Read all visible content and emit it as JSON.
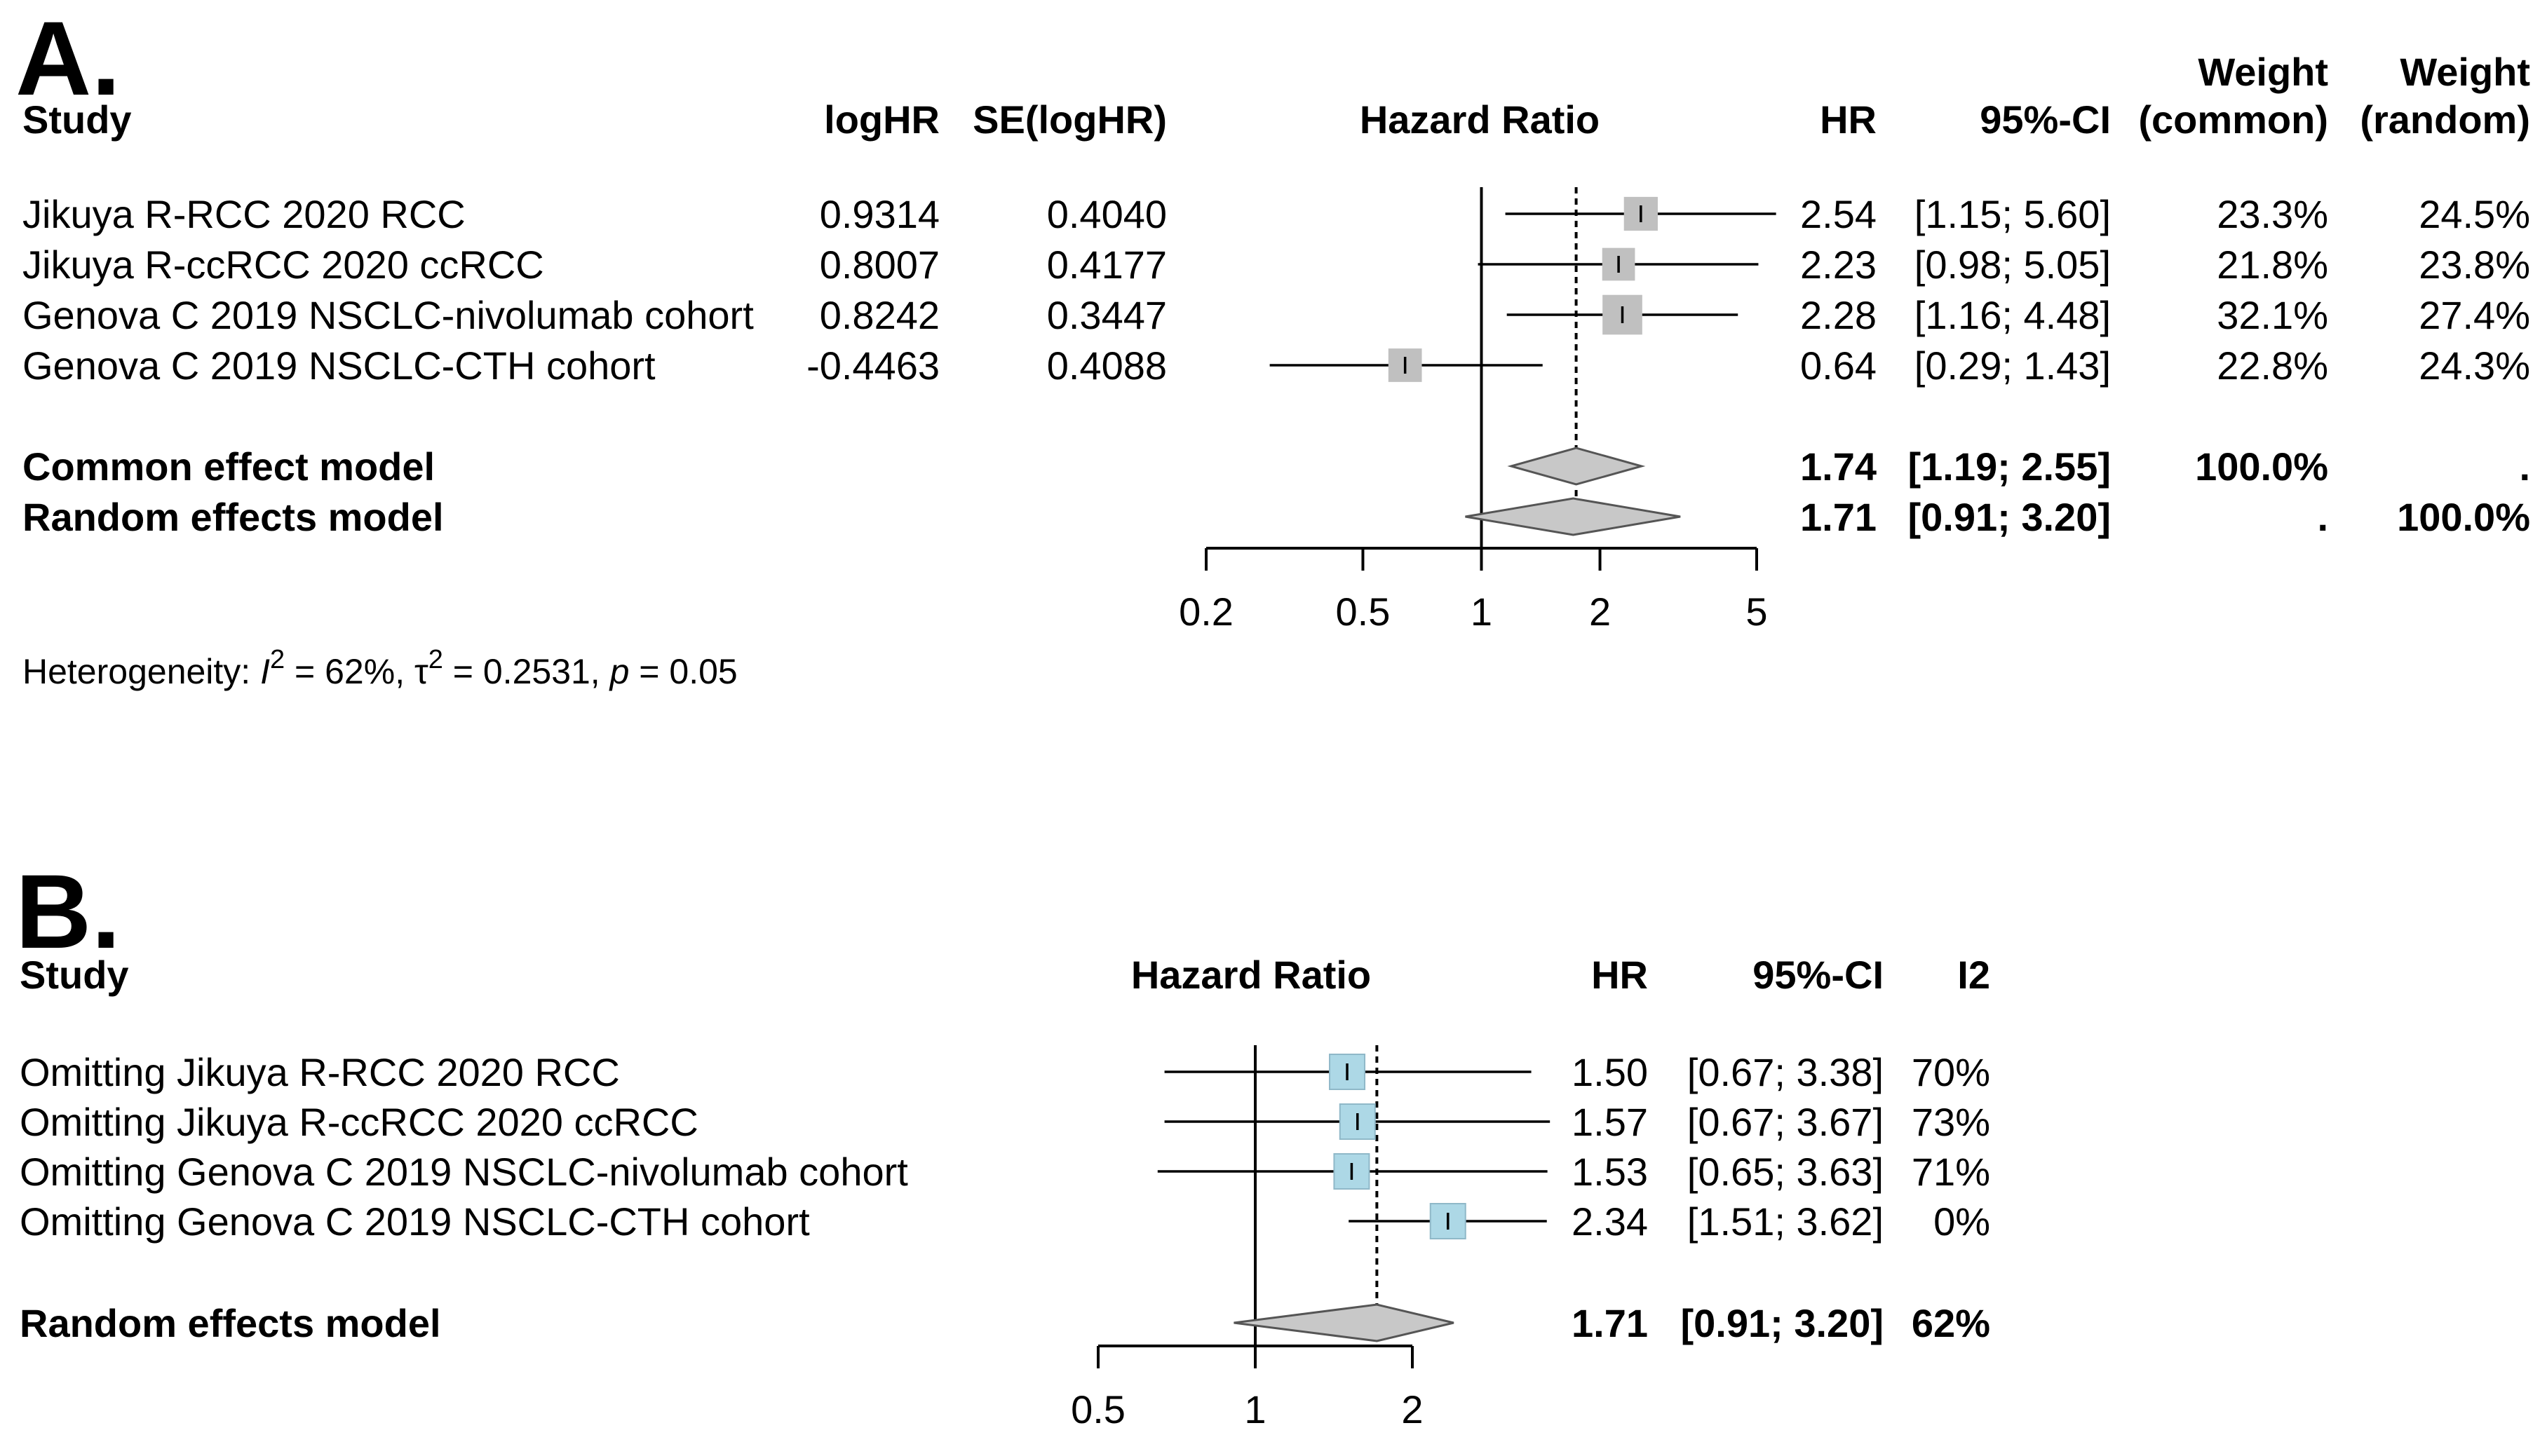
{
  "chart_data": [
    {
      "type": "forest",
      "panel_label": "A.",
      "scale": "log",
      "headers": {
        "study": "Study",
        "loghr": "logHR",
        "se": "SE(logHR)",
        "plot": "Hazard Ratio",
        "hr": "HR",
        "ci": "95%-CI",
        "weight_common_1": "Weight",
        "weight_common_2": "(common)",
        "weight_random_1": "Weight",
        "weight_random_2": "(random)"
      },
      "studies": [
        {
          "label": "Jikuya R-RCC 2020 RCC",
          "logHR": "0.9314",
          "se": "0.4040",
          "hr": 2.54,
          "lo": 1.15,
          "hi": 5.6,
          "hr_text": "2.54",
          "ci_text": "[1.15; 5.60]",
          "w_common": "23.3%",
          "w_random": "24.5%",
          "box_weight": 0.233
        },
        {
          "label": "Jikuya R-ccRCC 2020 ccRCC",
          "logHR": "0.8007",
          "se": "0.4177",
          "hr": 2.23,
          "lo": 0.98,
          "hi": 5.05,
          "hr_text": "2.23",
          "ci_text": "[0.98; 5.05]",
          "w_common": "21.8%",
          "w_random": "23.8%",
          "box_weight": 0.218
        },
        {
          "label": "Genova C 2019 NSCLC-nivolumab cohort",
          "logHR": "0.8242",
          "se": "0.3447",
          "hr": 2.28,
          "lo": 1.16,
          "hi": 4.48,
          "hr_text": "2.28",
          "ci_text": "[1.16; 4.48]",
          "w_common": "32.1%",
          "w_random": "27.4%",
          "box_weight": 0.321
        },
        {
          "label": "Genova C 2019 NSCLC-CTH cohort",
          "logHR": "-0.4463",
          "se": "0.4088",
          "hr": 0.64,
          "lo": 0.29,
          "hi": 1.43,
          "hr_text": "0.64",
          "ci_text": "[0.29; 1.43]",
          "w_common": "22.8%",
          "w_random": "24.3%",
          "box_weight": 0.228
        }
      ],
      "summaries": [
        {
          "label": "Common effect model",
          "hr": 1.74,
          "lo": 1.19,
          "hi": 2.55,
          "hr_text": "1.74",
          "ci_text": "[1.19; 2.55]",
          "w_common": "100.0%",
          "w_random": "."
        },
        {
          "label": "Random effects model",
          "hr": 1.71,
          "lo": 0.91,
          "hi": 3.2,
          "hr_text": "1.71",
          "ci_text": "[0.91; 3.20]",
          "w_common": ".",
          "w_random": "100.0%"
        }
      ],
      "axis": {
        "ticks": [
          0.2,
          0.5,
          1,
          2,
          5
        ],
        "tick_labels": [
          "0.2",
          "0.5",
          "1",
          "2",
          "5"
        ],
        "range": [
          0.2,
          5
        ],
        "null_value": 1,
        "summary_line": 1.74
      },
      "heterogeneity": {
        "prefix": "Heterogeneity: ",
        "i2_label": "I",
        "i2_sup": "2",
        "i2_value": " = 62%, ",
        "tau_label": "τ",
        "tau_sup": "2",
        "tau_value": " = 0.2531, ",
        "p_label": "p",
        "p_value": " = 0.05"
      },
      "colors": {
        "box": "#c0c0c0",
        "diamond": "#c8c8c8"
      }
    },
    {
      "type": "forest",
      "panel_label": "B.",
      "scale": "log",
      "headers": {
        "study": "Study",
        "plot": "Hazard Ratio",
        "hr": "HR",
        "ci": "95%-CI",
        "i2": "I2"
      },
      "studies": [
        {
          "label": "Omitting Jikuya R-RCC 2020 RCC",
          "hr": 1.5,
          "lo": 0.67,
          "hi": 3.38,
          "hr_text": "1.50",
          "ci_text": "[0.67; 3.38]",
          "i2": "70%"
        },
        {
          "label": "Omitting Jikuya R-ccRCC 2020 ccRCC",
          "hr": 1.57,
          "lo": 0.67,
          "hi": 3.67,
          "hr_text": "1.57",
          "ci_text": "[0.67; 3.67]",
          "i2": "73%"
        },
        {
          "label": "Omitting Genova C 2019 NSCLC-nivolumab cohort",
          "hr": 1.53,
          "lo": 0.65,
          "hi": 3.63,
          "hr_text": "1.53",
          "ci_text": "[0.65; 3.63]",
          "i2": "71%"
        },
        {
          "label": "Omitting Genova C 2019 NSCLC-CTH cohort",
          "hr": 2.34,
          "lo": 1.51,
          "hi": 3.62,
          "hr_text": "2.34",
          "ci_text": "[1.51; 3.62]",
          "i2": "0%"
        }
      ],
      "summaries": [
        {
          "label": "Random effects model",
          "hr": 1.71,
          "lo": 0.91,
          "hi": 3.2,
          "hr_text": "1.71",
          "ci_text": "[0.91; 3.20]",
          "i2": "62%"
        }
      ],
      "axis": {
        "ticks": [
          0.5,
          1,
          2
        ],
        "tick_labels": [
          "0.5",
          "1",
          "2"
        ],
        "range": [
          0.5,
          2
        ],
        "null_value": 1,
        "summary_line": 1.71
      },
      "colors": {
        "box": "#add8e6",
        "diamond": "#c8c8c8"
      }
    }
  ]
}
